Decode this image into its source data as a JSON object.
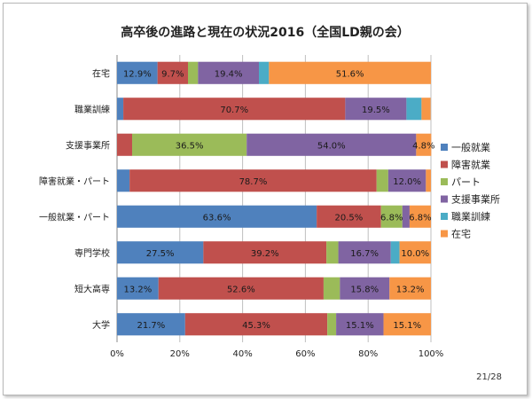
{
  "chart_data": {
    "type": "bar",
    "orientation": "horizontal",
    "stacked": "percent",
    "title": "高卒後の進路と現在の状況2016（全国LD親の会）",
    "categories": [
      "大学",
      "短大高専",
      "専門学校",
      "一般就業・パート",
      "障害就業・パート",
      "支援事業所",
      "職業訓練",
      "在宅"
    ],
    "series": [
      {
        "name": "一般就業",
        "color": "#4f81bd",
        "values": [
          21.7,
          13.2,
          27.5,
          63.6,
          4.0,
          0.0,
          2.0,
          12.9
        ],
        "labels": [
          "21.7%",
          "13.2%",
          "27.5%",
          "63.6%",
          "",
          "",
          "",
          "12.9%"
        ]
      },
      {
        "name": "障害就業",
        "color": "#c0504d",
        "values": [
          45.3,
          52.6,
          39.2,
          20.5,
          78.7,
          4.8,
          70.7,
          9.7
        ],
        "labels": [
          "45.3%",
          "52.6%",
          "39.2%",
          "20.5%",
          "78.7%",
          "",
          "70.7%",
          "9.7%"
        ]
      },
      {
        "name": "パート",
        "color": "#9bbb59",
        "values": [
          2.8,
          5.2,
          3.8,
          6.8,
          3.7,
          36.5,
          0.0,
          3.2
        ],
        "labels": [
          "",
          "",
          "",
          "6.8%",
          "",
          "36.5%",
          "",
          ""
        ]
      },
      {
        "name": "支援事業所",
        "color": "#8064a2",
        "values": [
          15.1,
          15.8,
          16.7,
          2.3,
          12.0,
          54.0,
          19.5,
          19.4
        ],
        "labels": [
          "15.1%",
          "15.8%",
          "16.7%",
          "",
          "12.0%",
          "54.0%",
          "19.5%",
          "19.4%"
        ]
      },
      {
        "name": "職業訓練",
        "color": "#4bacc6",
        "values": [
          0.0,
          0.0,
          2.8,
          0.0,
          0.0,
          0.0,
          4.8,
          3.2
        ],
        "labels": [
          "",
          "",
          "",
          "",
          "",
          "",
          "",
          ""
        ]
      },
      {
        "name": "在宅",
        "color": "#f79646",
        "values": [
          15.1,
          13.2,
          10.0,
          6.8,
          1.6,
          4.8,
          2.9,
          51.6
        ],
        "labels": [
          "15.1%",
          "13.2%",
          "10.0%",
          "6.8%",
          "",
          "4.8%",
          "",
          "51.6%"
        ]
      }
    ],
    "xlim": [
      0,
      100
    ],
    "xticks": [
      "0%",
      "20%",
      "40%",
      "60%",
      "80%",
      "100%"
    ],
    "grid": true,
    "legend_position": "right"
  },
  "page_number": "21/28"
}
